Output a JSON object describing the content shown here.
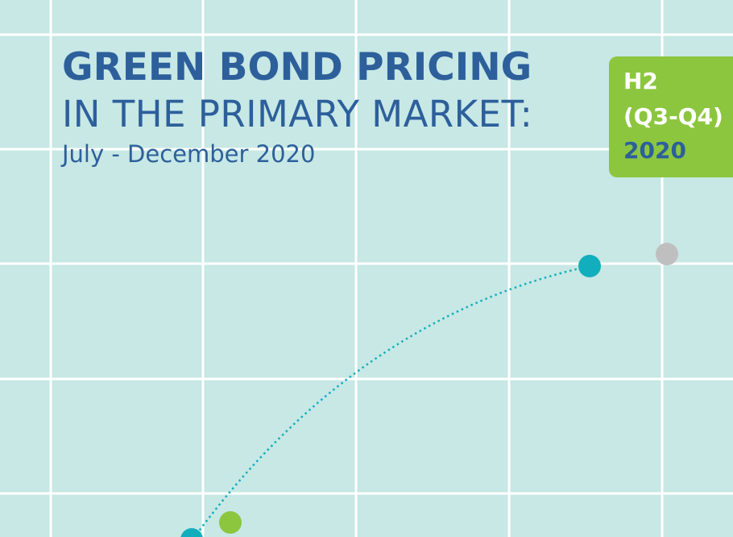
{
  "cover": {
    "title_line1": "GREEN BOND PRICING",
    "title_line2": "IN THE PRIMARY MARKET:",
    "subtitle": "July - December 2020"
  },
  "badge": {
    "line1": "H2",
    "line2": "(Q3-Q4)",
    "line3": "2020"
  },
  "colors": {
    "background": "#c7e8e5",
    "title": "#2d5f9b",
    "badge": "#8cc63f",
    "dot_teal": "#13aebd",
    "dot_green": "#8cc63f",
    "dot_grey": "#bfbfbf"
  }
}
